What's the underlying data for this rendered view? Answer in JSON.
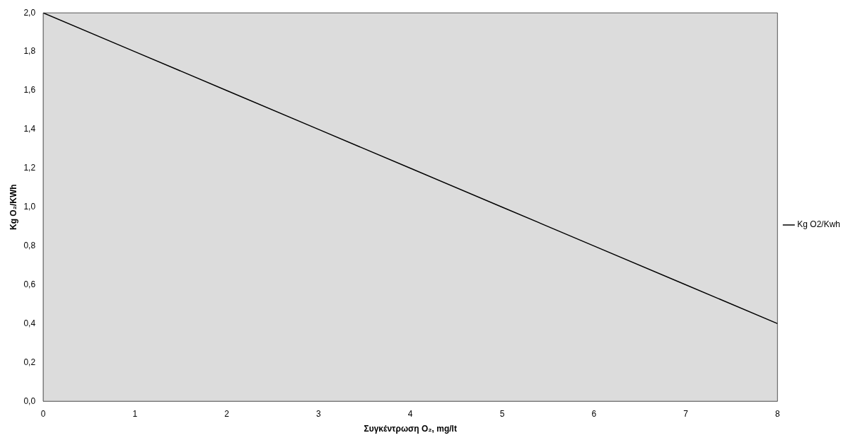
{
  "chart_data": {
    "type": "line",
    "xlabel": "Συγκέντρωση O₂, mg/lt",
    "ylabel": "Kg O₂/KWh",
    "x": [
      0,
      1,
      2,
      3,
      4,
      5,
      6,
      7,
      8
    ],
    "series": [
      {
        "name": "Kg O2/Kwh",
        "color": "#000000",
        "values": [
          2.0,
          1.8,
          1.6,
          1.4,
          1.2,
          1.0,
          0.8,
          0.6,
          0.4
        ]
      }
    ],
    "xlim": [
      0,
      8
    ],
    "xticks": [
      0,
      1,
      2,
      3,
      4,
      5,
      6,
      7,
      8
    ],
    "ylim": [
      0,
      2
    ],
    "yticks": [
      {
        "value": 0,
        "label": "0,0"
      },
      {
        "value": 0.2,
        "label": "0,2"
      },
      {
        "value": 0.4,
        "label": "0,4"
      },
      {
        "value": 0.6,
        "label": "0,6"
      },
      {
        "value": 0.8,
        "label": "0,8"
      },
      {
        "value": 1.0,
        "label": "1,0"
      },
      {
        "value": 1.2,
        "label": "1,2"
      },
      {
        "value": 1.4,
        "label": "1,4"
      },
      {
        "value": 1.6,
        "label": "1,6"
      },
      {
        "value": 1.8,
        "label": "1,8"
      },
      {
        "value": 2.0,
        "label": "2,0"
      }
    ],
    "legend": "right",
    "marker": "none",
    "line_style": "solid"
  }
}
